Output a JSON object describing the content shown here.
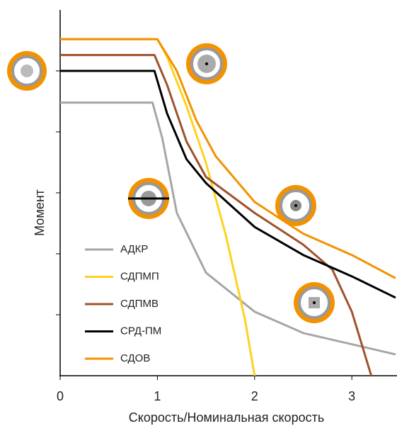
{
  "chart_data": {
    "type": "line",
    "x_label": "Скорость/Номинальная скорость",
    "y_label": "Момент",
    "xlim": [
      0,
      3.45
    ],
    "xticks": [
      0,
      1,
      2,
      3
    ],
    "ylim": [
      0,
      6
    ],
    "yticks": [
      1,
      2,
      3,
      4,
      5
    ],
    "legend": "lower left",
    "series": [
      {
        "name": "АДКР",
        "color": "#a6a6a6",
        "x": [
          0,
          0.95,
          1.05,
          1.2,
          1.5,
          2,
          2.5,
          3.45
        ],
        "values": [
          4.48,
          4.48,
          3.9,
          2.67,
          1.69,
          1.05,
          0.7,
          0.35
        ]
      },
      {
        "name": "СДПМП",
        "color": "#ffd21f",
        "x": [
          0,
          1.0,
          1.1,
          1.3,
          1.5,
          1.7,
          1.9,
          2.0
        ],
        "values": [
          5.52,
          5.52,
          5.23,
          4.42,
          3.49,
          2.33,
          0.93,
          0
        ]
      },
      {
        "name": "СДПМВ",
        "color": "#a0522d",
        "x": [
          0,
          0.97,
          1.1,
          1.3,
          1.5,
          2,
          2.5,
          2.8,
          3.0,
          3.2
        ],
        "values": [
          5.26,
          5.26,
          4.77,
          3.84,
          3.26,
          2.67,
          2.15,
          1.74,
          1.05,
          0
        ]
      },
      {
        "name": "СРД-ПМ",
        "color": "#000000",
        "x": [
          0,
          0.97,
          1.1,
          1.3,
          1.5,
          2,
          2.5,
          3.0,
          3.45
        ],
        "values": [
          5.0,
          5.0,
          4.3,
          3.55,
          3.16,
          2.44,
          1.98,
          1.63,
          1.28
        ]
      },
      {
        "name": "СДОВ",
        "color": "#f39200",
        "x": [
          0,
          1.0,
          1.2,
          1.4,
          1.6,
          2,
          2.5,
          3.0,
          3.45
        ],
        "values": [
          5.52,
          5.52,
          5.0,
          4.19,
          3.6,
          2.85,
          2.33,
          1.98,
          1.6
        ]
      }
    ]
  }
}
